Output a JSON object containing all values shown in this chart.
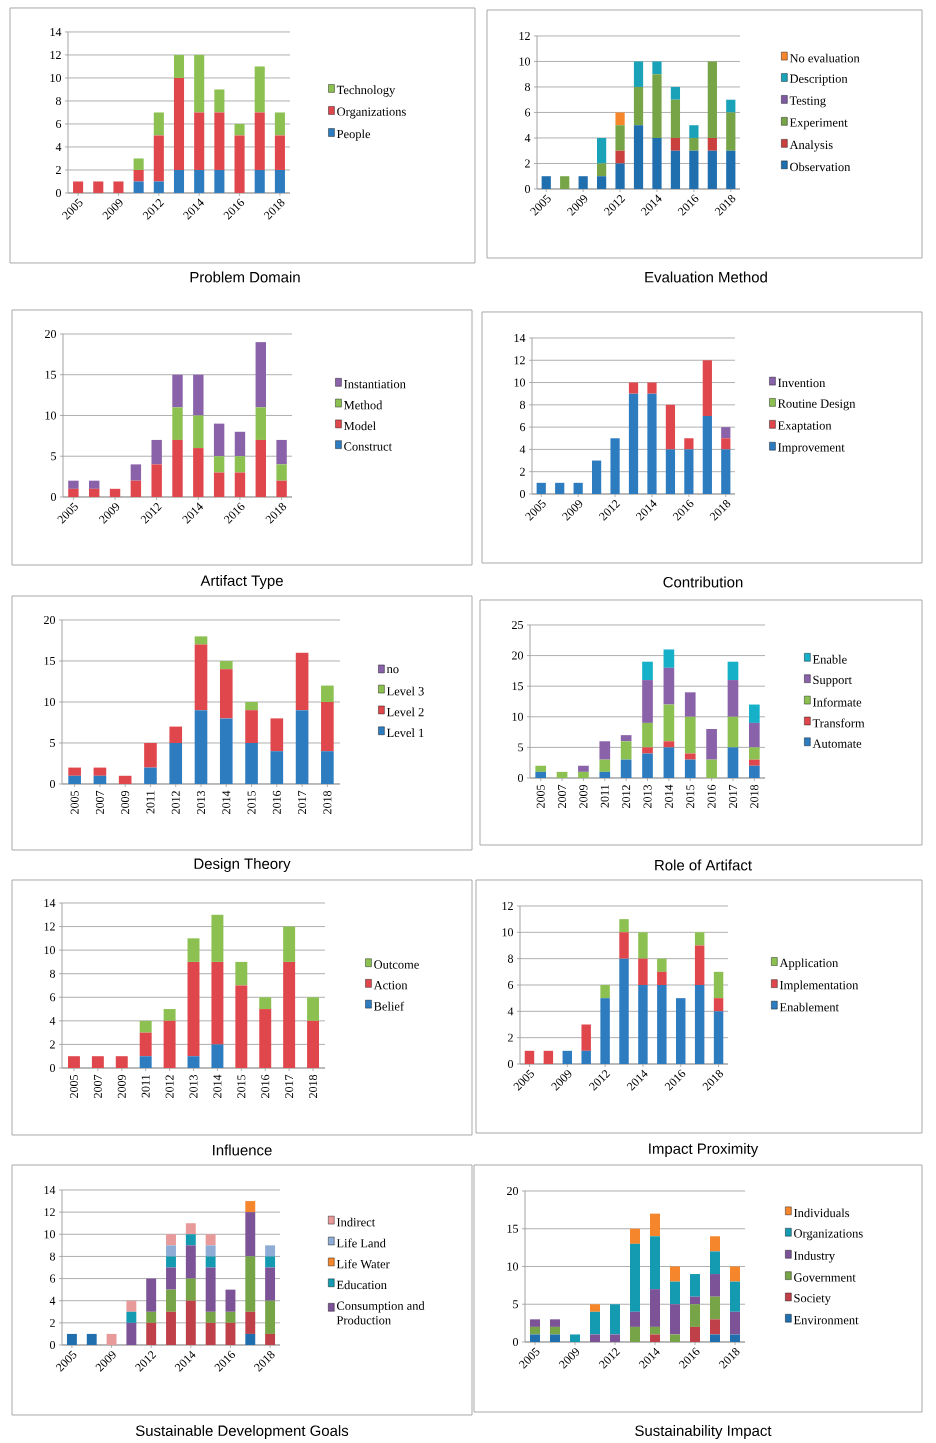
{
  "chart_data": [
    {
      "type": "bar",
      "title": "Problem Domain",
      "stacked": true,
      "grid": "y",
      "legend": "right",
      "ylim": [
        0,
        14
      ],
      "yticks": [
        0,
        2,
        4,
        6,
        8,
        10,
        12,
        14
      ],
      "categories": [
        "2005",
        null,
        "2009",
        null,
        "2012",
        null,
        "2014",
        null,
        "2016",
        null,
        "2018"
      ],
      "series": [
        {
          "name": "People",
          "color": "#2e7cc0",
          "values": [
            0,
            0,
            0,
            1,
            1,
            2,
            2,
            2,
            0,
            2,
            2
          ]
        },
        {
          "name": "Organizations",
          "color": "#e0474c",
          "values": [
            1,
            1,
            1,
            1,
            4,
            8,
            5,
            5,
            5,
            5,
            3
          ]
        },
        {
          "name": "Technology",
          "color": "#8cc152",
          "values": [
            0,
            0,
            0,
            1,
            2,
            2,
            5,
            2,
            1,
            4,
            2
          ]
        }
      ]
    },
    {
      "type": "bar",
      "title": "Evaluation Method",
      "stacked": true,
      "grid": "y",
      "legend": "right",
      "ylim": [
        0,
        12
      ],
      "yticks": [
        0,
        2,
        4,
        6,
        8,
        10,
        12
      ],
      "categories": [
        "2005",
        null,
        "2009",
        null,
        "2012",
        null,
        "2014",
        null,
        "2016",
        null,
        "2018"
      ],
      "series": [
        {
          "name": "Observation",
          "color": "#1f6eae",
          "values": [
            1,
            0,
            1,
            1,
            2,
            5,
            4,
            3,
            3,
            3,
            3
          ]
        },
        {
          "name": "Analysis",
          "color": "#c9403f",
          "values": [
            0,
            0,
            0,
            0,
            1,
            0,
            0,
            1,
            0,
            1,
            0
          ]
        },
        {
          "name": "Experiment",
          "color": "#77a446",
          "values": [
            0,
            1,
            0,
            1,
            2,
            3,
            5,
            3,
            1,
            6,
            3
          ]
        },
        {
          "name": "Testing",
          "color": "#7e5aa0",
          "values": [
            0,
            0,
            0,
            0,
            0,
            0,
            0,
            0,
            0,
            0,
            0
          ]
        },
        {
          "name": "Description",
          "color": "#1aa2b8",
          "values": [
            0,
            0,
            0,
            2,
            0,
            2,
            1,
            1,
            1,
            0,
            1
          ]
        },
        {
          "name": "No evaluation",
          "color": "#f5862c",
          "values": [
            0,
            0,
            0,
            0,
            1,
            0,
            0,
            0,
            0,
            0,
            0
          ]
        }
      ]
    },
    {
      "type": "bar",
      "title": "Artifact Type",
      "stacked": true,
      "grid": "y",
      "legend": "right",
      "ylim": [
        0,
        20
      ],
      "yticks": [
        0,
        5,
        10,
        15,
        20
      ],
      "categories": [
        "2005",
        null,
        "2009",
        null,
        "2012",
        null,
        "2014",
        null,
        "2016",
        null,
        "2018"
      ],
      "series": [
        {
          "name": "Construct",
          "color": "#2e7cc0",
          "values": [
            0,
            0,
            0,
            0,
            0,
            0,
            0,
            0,
            0,
            0,
            0
          ]
        },
        {
          "name": "Model",
          "color": "#e0474c",
          "values": [
            1,
            1,
            1,
            2,
            4,
            7,
            6,
            3,
            3,
            7,
            2
          ]
        },
        {
          "name": "Method",
          "color": "#8cc152",
          "values": [
            0,
            0,
            0,
            0,
            0,
            4,
            4,
            2,
            2,
            4,
            2
          ]
        },
        {
          "name": "Instantiation",
          "color": "#8a62aa",
          "values": [
            1,
            1,
            0,
            2,
            3,
            4,
            5,
            4,
            3,
            8,
            3
          ]
        }
      ]
    },
    {
      "type": "bar",
      "title": "Contribution",
      "stacked": true,
      "grid": "y",
      "legend": "right",
      "ylim": [
        0,
        14
      ],
      "yticks": [
        0,
        2,
        4,
        6,
        8,
        10,
        12,
        14
      ],
      "categories": [
        "2005",
        null,
        "2009",
        null,
        "2012",
        null,
        "2014",
        null,
        "2016",
        null,
        "2018"
      ],
      "series": [
        {
          "name": "Improvement",
          "color": "#2e7cc0",
          "values": [
            1,
            1,
            1,
            3,
            5,
            9,
            9,
            4,
            4,
            7,
            4
          ]
        },
        {
          "name": "Exaptation",
          "color": "#e0474c",
          "values": [
            0,
            0,
            0,
            0,
            0,
            1,
            1,
            4,
            1,
            5,
            1
          ]
        },
        {
          "name": "Routine Design",
          "color": "#8cc152",
          "values": [
            0,
            0,
            0,
            0,
            0,
            0,
            0,
            0,
            0,
            0,
            0
          ]
        },
        {
          "name": "Invention",
          "color": "#8a62aa",
          "values": [
            0,
            0,
            0,
            0,
            0,
            0,
            0,
            0,
            0,
            0,
            1
          ]
        }
      ]
    },
    {
      "type": "bar",
      "title": "Design Theory",
      "stacked": true,
      "grid": "y",
      "legend": "right",
      "ylim": [
        0,
        20
      ],
      "yticks": [
        0,
        5,
        10,
        15,
        20
      ],
      "categories": [
        "2005",
        "2007",
        "2009",
        "2011",
        "2012",
        "2013",
        "2014",
        "2015",
        "2016",
        "2017",
        "2018"
      ],
      "series": [
        {
          "name": "Level 1",
          "color": "#2e7cc0",
          "values": [
            1,
            1,
            0,
            2,
            5,
            9,
            8,
            5,
            4,
            9,
            4
          ]
        },
        {
          "name": "Level 2",
          "color": "#e0474c",
          "values": [
            1,
            1,
            1,
            3,
            2,
            8,
            6,
            4,
            4,
            7,
            6
          ]
        },
        {
          "name": "Level 3",
          "color": "#8cc152",
          "values": [
            0,
            0,
            0,
            0,
            0,
            1,
            1,
            1,
            0,
            0,
            2
          ]
        },
        {
          "name": "no",
          "color": "#8a62aa",
          "values": [
            0,
            0,
            0,
            0,
            0,
            0,
            0,
            0,
            0,
            0,
            0
          ]
        }
      ]
    },
    {
      "type": "bar",
      "title": "Role of Artifact",
      "stacked": true,
      "grid": "y",
      "legend": "right",
      "ylim": [
        0,
        25
      ],
      "yticks": [
        0,
        5,
        10,
        15,
        20,
        25
      ],
      "categories": [
        "2005",
        "2007",
        "2009",
        "2011",
        "2012",
        "2013",
        "2014",
        "2015",
        "2016",
        "2017",
        "2018"
      ],
      "series": [
        {
          "name": "Automate",
          "color": "#2e7cc0",
          "values": [
            1,
            0,
            0,
            1,
            3,
            4,
            5,
            3,
            0,
            5,
            2
          ]
        },
        {
          "name": "Transform",
          "color": "#e0474c",
          "values": [
            0,
            0,
            0,
            0,
            0,
            1,
            1,
            1,
            0,
            0,
            1
          ]
        },
        {
          "name": "Informate",
          "color": "#8cc152",
          "values": [
            1,
            1,
            1,
            2,
            3,
            4,
            6,
            6,
            3,
            5,
            2
          ]
        },
        {
          "name": "Support",
          "color": "#8a62aa",
          "values": [
            0,
            0,
            1,
            3,
            1,
            7,
            6,
            4,
            5,
            6,
            4
          ]
        },
        {
          "name": "Enable",
          "color": "#17b0c9",
          "values": [
            0,
            0,
            0,
            0,
            0,
            3,
            3,
            0,
            0,
            3,
            3
          ]
        }
      ]
    },
    {
      "type": "bar",
      "title": "Influence",
      "stacked": true,
      "grid": "y",
      "legend": "right",
      "ylim": [
        0,
        14
      ],
      "yticks": [
        0,
        2,
        4,
        6,
        8,
        10,
        12,
        14
      ],
      "categories": [
        "2005",
        "2007",
        "2009",
        "2011",
        "2012",
        "2013",
        "2014",
        "2015",
        "2016",
        "2017",
        "2018"
      ],
      "series": [
        {
          "name": "Belief",
          "color": "#2e7cc0",
          "values": [
            0,
            0,
            0,
            1,
            0,
            1,
            2,
            0,
            0,
            0,
            0
          ]
        },
        {
          "name": "Action",
          "color": "#e0474c",
          "values": [
            1,
            1,
            1,
            2,
            4,
            8,
            7,
            7,
            5,
            9,
            4
          ]
        },
        {
          "name": "Outcome",
          "color": "#8cc152",
          "values": [
            0,
            0,
            0,
            1,
            1,
            2,
            4,
            2,
            1,
            3,
            2
          ]
        }
      ]
    },
    {
      "type": "bar",
      "title": "Impact Proximity",
      "stacked": true,
      "grid": "y",
      "legend": "right",
      "ylim": [
        0,
        12
      ],
      "yticks": [
        0,
        2,
        4,
        6,
        8,
        10,
        12
      ],
      "categories": [
        "2005",
        null,
        "2009",
        null,
        "2012",
        null,
        "2014",
        null,
        "2016",
        null,
        "2018"
      ],
      "series": [
        {
          "name": "Enablement",
          "color": "#2e7cc0",
          "values": [
            0,
            0,
            1,
            1,
            5,
            8,
            6,
            6,
            5,
            6,
            4
          ]
        },
        {
          "name": "Implementation",
          "color": "#e0474c",
          "values": [
            1,
            1,
            0,
            2,
            0,
            2,
            2,
            1,
            0,
            3,
            1
          ]
        },
        {
          "name": "Application",
          "color": "#8cc152",
          "values": [
            0,
            0,
            0,
            0,
            1,
            1,
            2,
            1,
            0,
            1,
            2
          ]
        }
      ]
    },
    {
      "type": "bar",
      "title": "Sustainable Development Goals",
      "stacked": true,
      "grid": "y",
      "legend": "right",
      "ylim": [
        0,
        14
      ],
      "yticks": [
        0,
        2,
        4,
        6,
        8,
        10,
        12,
        14
      ],
      "categories": [
        "2005",
        null,
        "2009",
        null,
        "2012",
        null,
        "2014",
        null,
        "2016",
        null,
        "2018"
      ],
      "series": [
        {
          "color": "#1f6eae",
          "values": [
            1,
            1,
            0,
            0,
            0,
            0,
            0,
            0,
            0,
            1,
            0
          ]
        },
        {
          "color": "#c0404a",
          "values": [
            0,
            0,
            0,
            0,
            2,
            3,
            4,
            2,
            2,
            2,
            1
          ]
        },
        {
          "color": "#77a446",
          "values": [
            0,
            0,
            0,
            0,
            1,
            2,
            2,
            1,
            1,
            5,
            3
          ]
        },
        {
          "name": "Consumption and Production",
          "color": "#7b5396",
          "values": [
            0,
            0,
            0,
            2,
            3,
            2,
            3,
            4,
            2,
            4,
            3
          ]
        },
        {
          "name": "Education",
          "color": "#149bb1",
          "values": [
            0,
            0,
            0,
            1,
            0,
            1,
            1,
            1,
            0,
            0,
            1
          ]
        },
        {
          "name": "Life Water",
          "color": "#f5862c",
          "values": [
            0,
            0,
            0,
            0,
            0,
            0,
            0,
            0,
            0,
            1,
            0
          ]
        },
        {
          "name": "Life Land",
          "color": "#8eacd6",
          "values": [
            0,
            0,
            0,
            0,
            0,
            1,
            0,
            1,
            0,
            0,
            1
          ]
        },
        {
          "name": "Indirect",
          "color": "#e8999a",
          "values": [
            0,
            0,
            1,
            1,
            0,
            1,
            1,
            1,
            0,
            0,
            0
          ]
        }
      ]
    },
    {
      "type": "bar",
      "title": "Sustainability Impact",
      "stacked": true,
      "grid": "y",
      "legend": "right",
      "ylim": [
        0,
        20
      ],
      "yticks": [
        0,
        5,
        10,
        15,
        20
      ],
      "categories": [
        "2005",
        null,
        "2009",
        null,
        "2012",
        null,
        "2014",
        null,
        "2016",
        null,
        "2018"
      ],
      "series": [
        {
          "name": "Environment",
          "color": "#1f6eae",
          "values": [
            1,
            1,
            0,
            0,
            0,
            0,
            0,
            0,
            0,
            1,
            1
          ]
        },
        {
          "name": "Society",
          "color": "#c0404a",
          "values": [
            0,
            0,
            0,
            0,
            0,
            0,
            1,
            0,
            2,
            2,
            0
          ]
        },
        {
          "name": "Government",
          "color": "#77a446",
          "values": [
            1,
            1,
            0,
            0,
            0,
            2,
            1,
            1,
            3,
            3,
            0
          ]
        },
        {
          "name": "Industry",
          "color": "#7b5396",
          "values": [
            1,
            1,
            0,
            1,
            1,
            2,
            5,
            4,
            1,
            3,
            3
          ]
        },
        {
          "name": "Organizations",
          "color": "#149bb1",
          "values": [
            0,
            0,
            1,
            3,
            4,
            9,
            7,
            3,
            3,
            3,
            4
          ]
        },
        {
          "name": "Individuals",
          "color": "#f5862c",
          "values": [
            0,
            0,
            0,
            1,
            0,
            2,
            3,
            2,
            0,
            2,
            2
          ]
        }
      ]
    }
  ]
}
